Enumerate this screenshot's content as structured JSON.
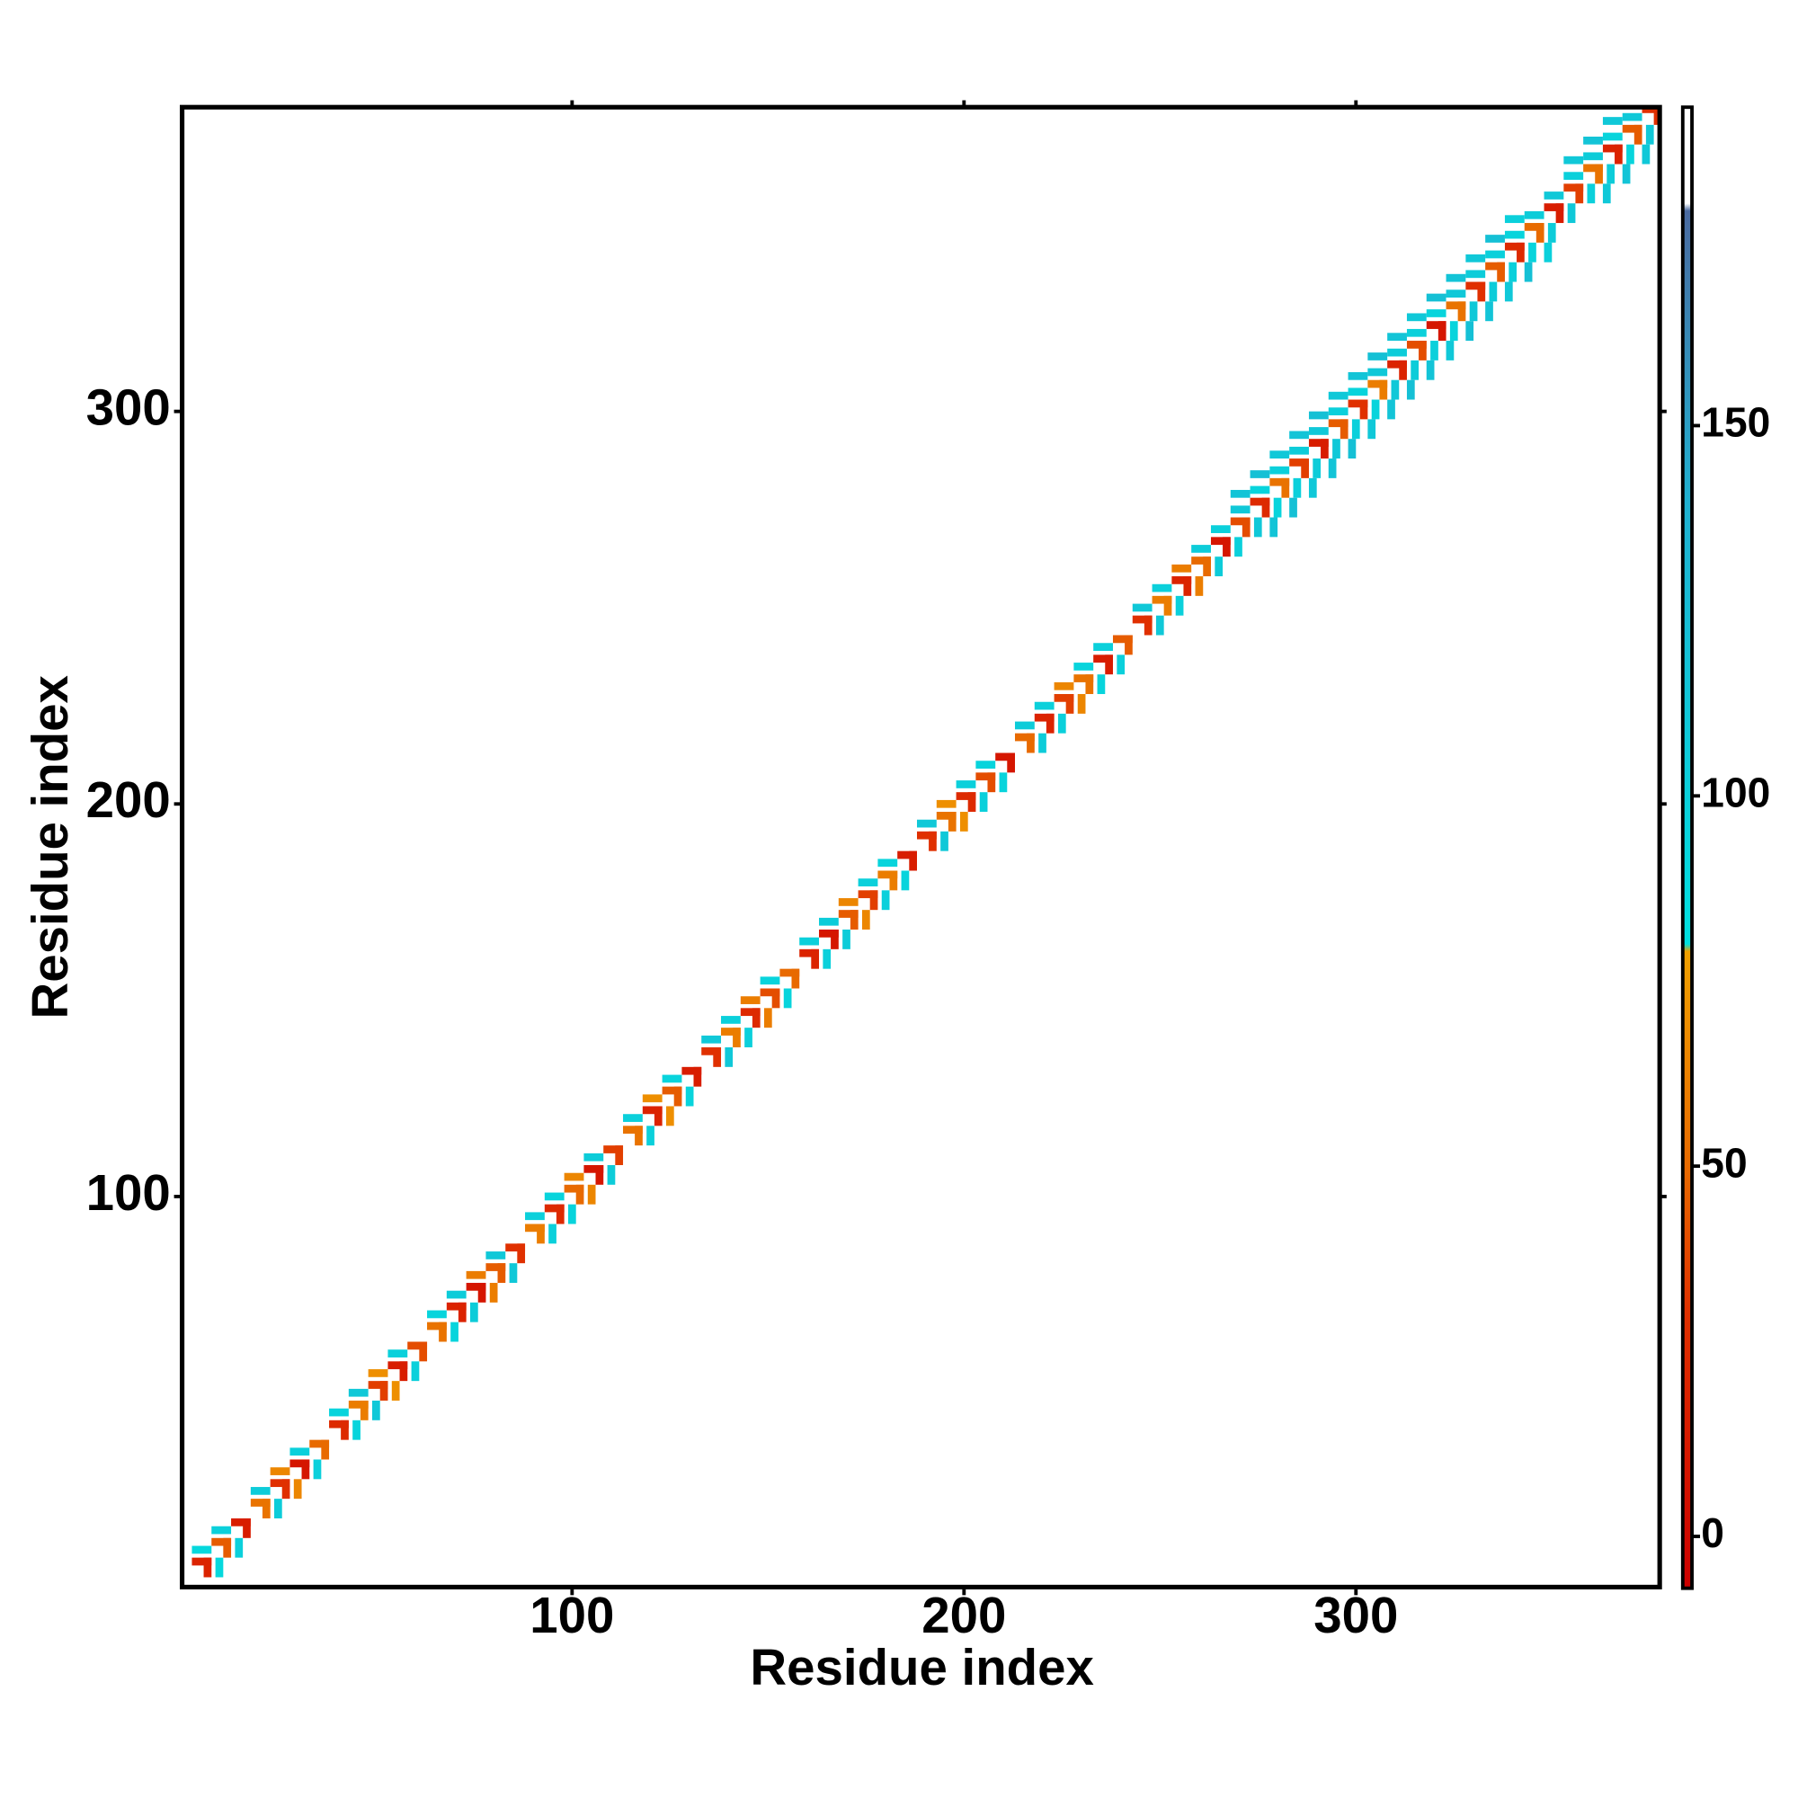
{
  "chart_data": {
    "type": "heatmap",
    "xlabel": "Residue index",
    "ylabel": "Residue index",
    "xlim": [
      0.5,
      377.5
    ],
    "ylim": [
      0.5,
      377.5
    ],
    "xticks": [
      100,
      200,
      300
    ],
    "yticks": [
      100,
      200,
      300
    ],
    "colorbar": {
      "lim": [
        -7,
        193
      ],
      "ticks": [
        0,
        50,
        100,
        150
      ],
      "scale": [
        {
          "value": -7,
          "color": "#cc0000"
        },
        {
          "value": 30,
          "color": "#e03000"
        },
        {
          "value": 50,
          "color": "#e86a00"
        },
        {
          "value": 79,
          "color": "#f0a000"
        },
        {
          "value": 80,
          "color": "#00e0e0"
        },
        {
          "value": 140,
          "color": "#20b0d0"
        },
        {
          "value": 179,
          "color": "#4a6aa0"
        },
        {
          "value": 180,
          "color": "#ffffff"
        },
        {
          "value": 193,
          "color": "#ffffff"
        }
      ]
    },
    "x": [
      3,
      8,
      13,
      18,
      23,
      28,
      33,
      38,
      43,
      48,
      53,
      58,
      63,
      68,
      73,
      78,
      83,
      88,
      93,
      98,
      103,
      108,
      113,
      118,
      123,
      128,
      133,
      138,
      143,
      148,
      153,
      158,
      163,
      168,
      173,
      178,
      183,
      188,
      193,
      198,
      203,
      208,
      213,
      218,
      223,
      228,
      233,
      238,
      243,
      248,
      253,
      258,
      263,
      268,
      273,
      278,
      283,
      288,
      293,
      298,
      303,
      308,
      313,
      318,
      323,
      328,
      333,
      338,
      343,
      348,
      353,
      358,
      363,
      368,
      373
    ],
    "bands": [
      {
        "offset": 3,
        "values": [
          20,
          45,
          15,
          55,
          30,
          10,
          50,
          25,
          60,
          35,
          15,
          40,
          55,
          20,
          10,
          45,
          30,
          60,
          25,
          50,
          10,
          35,
          55,
          20,
          45,
          15,
          30,
          60,
          25,
          40,
          50,
          20,
          10,
          45,
          35,
          60,
          15,
          30,
          55,
          25,
          40,
          10,
          50,
          20,
          35,
          55,
          15,
          45,
          30,
          60,
          20,
          50,
          10,
          40,
          25,
          55,
          35,
          15,
          45,
          30,
          60,
          20,
          40,
          10,
          55,
          30,
          45,
          25,
          50,
          15,
          35,
          55,
          20,
          45,
          30
        ]
      },
      {
        "offset": 6,
        "values": [
          90,
          100,
          null,
          105,
          65,
          100,
          null,
          95,
          110,
          70,
          100,
          null,
          95,
          105,
          60,
          110,
          null,
          100,
          95,
          65,
          105,
          null,
          100,
          70,
          95,
          null,
          110,
          100,
          60,
          95,
          null,
          100,
          105,
          65,
          100,
          95,
          null,
          110,
          70,
          100,
          95,
          null,
          105,
          100,
          65,
          95,
          100,
          null,
          110,
          100,
          60,
          105,
          100,
          110,
          95,
          100,
          105,
          110,
          100,
          95,
          110,
          105,
          100,
          95,
          110,
          105,
          100,
          95,
          105,
          110,
          100,
          105,
          95,
          110,
          100
        ]
      },
      {
        "offset": 10,
        "values": [
          null,
          null,
          null,
          null,
          null,
          null,
          null,
          null,
          null,
          null,
          null,
          null,
          null,
          null,
          null,
          null,
          null,
          null,
          null,
          null,
          null,
          null,
          null,
          null,
          null,
          null,
          null,
          null,
          null,
          null,
          null,
          null,
          null,
          null,
          null,
          null,
          null,
          null,
          null,
          null,
          null,
          null,
          null,
          null,
          null,
          null,
          null,
          null,
          null,
          null,
          null,
          null,
          null,
          115,
          120,
          110,
          115,
          120,
          110,
          115,
          120,
          115,
          110,
          120,
          115,
          110,
          120,
          100,
          null,
          null,
          110,
          115,
          110,
          120,
          115
        ]
      }
    ]
  }
}
